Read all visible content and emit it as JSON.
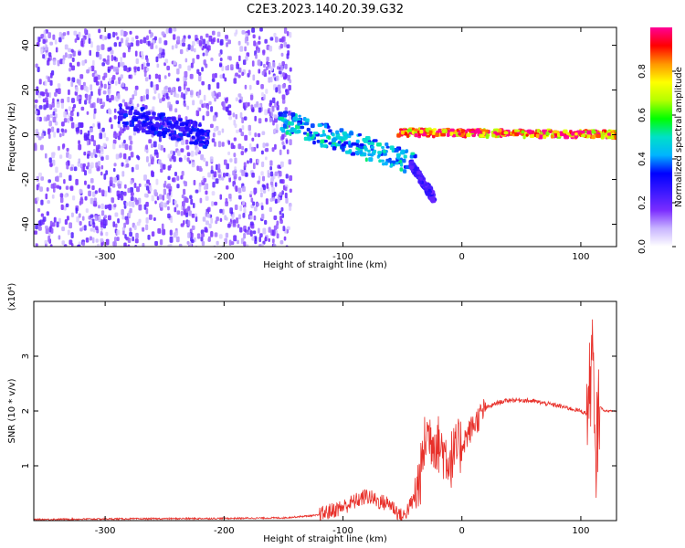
{
  "title": "C2E3.2023.140.20.39.G32",
  "chart_data": [
    {
      "type": "heatmap",
      "xlabel": "Height of straight line (km)",
      "ylabel": "Frequency (Hz)",
      "xlim": [
        -360,
        130
      ],
      "ylim": [
        -50,
        48
      ],
      "xticks": [
        -300,
        -200,
        -100,
        0,
        100
      ],
      "yticks": [
        -40,
        -20,
        0,
        20,
        40
      ],
      "colorbar": {
        "label": "Normalized spectral amplitude",
        "range": [
          0,
          1
        ],
        "ticks": [
          "0.0",
          "0.2",
          "0.4",
          "0.6",
          "0.8"
        ],
        "colors": [
          "#ffffff",
          "#c8b4ff",
          "#7a2cff",
          "#3b18ff",
          "#0000ff",
          "#00b4ff",
          "#00e0c8",
          "#00ff00",
          "#b4ff00",
          "#ffff00",
          "#ff9600",
          "#ff0000",
          "#ff0096"
        ]
      },
      "features": [
        {
          "name": "diffuse noise",
          "x": [
            -360,
            -145
          ],
          "y": [
            -50,
            48
          ],
          "level": 0.15
        },
        {
          "name": "band",
          "x": [
            -290,
            -215
          ],
          "y": [
            10,
            0
          ],
          "level": 0.3
        },
        {
          "name": "band",
          "x": [
            -155,
            -40
          ],
          "y": [
            7,
            -12
          ],
          "level": 0.45
        },
        {
          "name": "branch",
          "x": [
            -45,
            -25
          ],
          "y": [
            -12,
            -28
          ],
          "level": 0.25
        },
        {
          "name": "bright line",
          "x": [
            -55,
            130
          ],
          "y": [
            2,
            1
          ],
          "level": 0.9
        }
      ]
    },
    {
      "type": "line",
      "xlabel": "Height of straight line (km)",
      "ylabel": "SNR (10 * v/v)",
      "multiplier": "(x10⁴)",
      "xlim": [
        -360,
        130
      ],
      "ylim": [
        0,
        4
      ],
      "xticks": [
        -300,
        -200,
        -100,
        0,
        100
      ],
      "yticks": [
        1,
        2,
        3
      ],
      "series_color": "#e8302a",
      "x": [
        -360,
        -300,
        -200,
        -150,
        -120,
        -100,
        -80,
        -70,
        -60,
        -50,
        -40,
        -35,
        -30,
        -25,
        -20,
        -10,
        0,
        10,
        20,
        30,
        40,
        50,
        60,
        80,
        100,
        105,
        108,
        110,
        112,
        115,
        120,
        130
      ],
      "y": [
        0.02,
        0.03,
        0.04,
        0.05,
        0.1,
        0.25,
        0.45,
        0.35,
        0.3,
        0.05,
        0.4,
        0.8,
        1.6,
        1.5,
        1.4,
        1.1,
        1.4,
        1.75,
        2.05,
        2.15,
        2.2,
        2.2,
        2.18,
        2.1,
        2.0,
        1.95,
        2.5,
        3.2,
        0.8,
        2.1,
        2.0,
        2.0
      ]
    }
  ]
}
